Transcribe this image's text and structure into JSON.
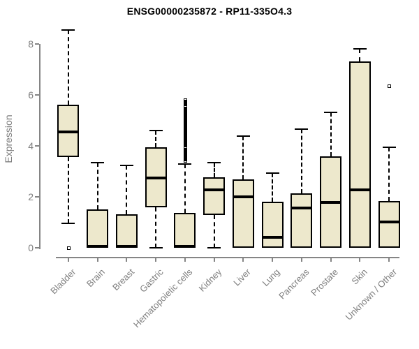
{
  "page": {
    "background": "#FFFFFF"
  },
  "chart_data": {
    "type": "boxplot",
    "title": "ENSG00000235872 - RP11-335O4.3",
    "xlabel": "",
    "ylabel": "Expression",
    "y_ticks": [
      0,
      2,
      4,
      6,
      8
    ],
    "ylim": [
      0,
      8.7
    ],
    "grid": false,
    "legend": false,
    "categories": [
      "Bladder",
      "Brain",
      "Breast",
      "Gastric",
      "Hematopoietic cells",
      "Kidney",
      "Liver",
      "Lung",
      "Pancreas",
      "Prostate",
      "Skin",
      "Unknown / Other"
    ],
    "boxes": [
      {
        "category": "Bladder",
        "whisker_low": 0.95,
        "q1": 3.57,
        "median": 4.55,
        "q3": 5.62,
        "whisker_high": 8.55,
        "outliers": [
          0
        ]
      },
      {
        "category": "Brain",
        "whisker_low": 0,
        "q1": 0,
        "median": 0.06,
        "q3": 1.52,
        "whisker_high": 3.34,
        "outliers": []
      },
      {
        "category": "Breast",
        "whisker_low": 0,
        "q1": 0,
        "median": 0.06,
        "q3": 1.33,
        "whisker_high": 3.25,
        "outliers": []
      },
      {
        "category": "Gastric",
        "whisker_low": 0,
        "q1": 1.6,
        "median": 2.74,
        "q3": 3.96,
        "whisker_high": 4.62,
        "outliers": []
      },
      {
        "category": "Hematopoietic cells",
        "whisker_low": 0,
        "q1": 0,
        "median": 0.06,
        "q3": 1.37,
        "whisker_high": 3.3,
        "outliers": [
          3.43,
          3.48,
          3.52,
          3.57,
          3.61,
          3.66,
          3.7,
          3.75,
          3.79,
          3.84,
          3.88,
          3.93,
          3.97,
          4.02,
          4.06,
          4.11,
          4.15,
          4.2,
          4.24,
          4.29,
          4.33,
          4.38,
          4.42,
          4.47,
          4.51,
          4.56,
          4.6,
          4.65,
          4.69,
          4.74,
          4.78,
          4.83,
          4.87,
          4.92,
          4.96,
          5.01,
          5.05,
          5.1,
          5.14,
          5.19,
          5.23,
          5.28,
          5.32,
          5.37,
          5.41,
          5.46,
          5.5,
          5.55,
          5.59,
          5.64,
          5.68,
          5.73,
          5.77,
          5.82
        ]
      },
      {
        "category": "Kidney",
        "whisker_low": 0,
        "q1": 1.3,
        "median": 2.29,
        "q3": 2.77,
        "whisker_high": 3.34,
        "outliers": []
      },
      {
        "category": "Liver",
        "whisker_low": 0,
        "q1": 0,
        "median": 1.99,
        "q3": 2.7,
        "whisker_high": 4.4,
        "outliers": []
      },
      {
        "category": "Lung",
        "whisker_low": 0,
        "q1": 0,
        "median": 0.41,
        "q3": 1.8,
        "whisker_high": 2.93,
        "outliers": []
      },
      {
        "category": "Pancreas",
        "whisker_low": 0,
        "q1": 0,
        "median": 1.56,
        "q3": 2.15,
        "whisker_high": 4.67,
        "outliers": []
      },
      {
        "category": "Prostate",
        "whisker_low": 0,
        "q1": 0,
        "median": 1.78,
        "q3": 3.59,
        "whisker_high": 5.33,
        "outliers": []
      },
      {
        "category": "Skin",
        "whisker_low": 0,
        "q1": 0,
        "median": 2.28,
        "q3": 7.33,
        "whisker_high": 7.83,
        "outliers": []
      },
      {
        "category": "Unknown / Other",
        "whisker_low": 0,
        "q1": 0,
        "median": 1.01,
        "q3": 1.83,
        "whisker_high": 3.95,
        "outliers": [
          6.36
        ]
      }
    ],
    "colors": {
      "box_fill": "#EDE8CC",
      "box_border": "#000000",
      "median": "#000000",
      "axis": "#858585",
      "axis_text": "#7E7E7E",
      "title_text": "#000000",
      "background": "#FFFFFF"
    }
  }
}
